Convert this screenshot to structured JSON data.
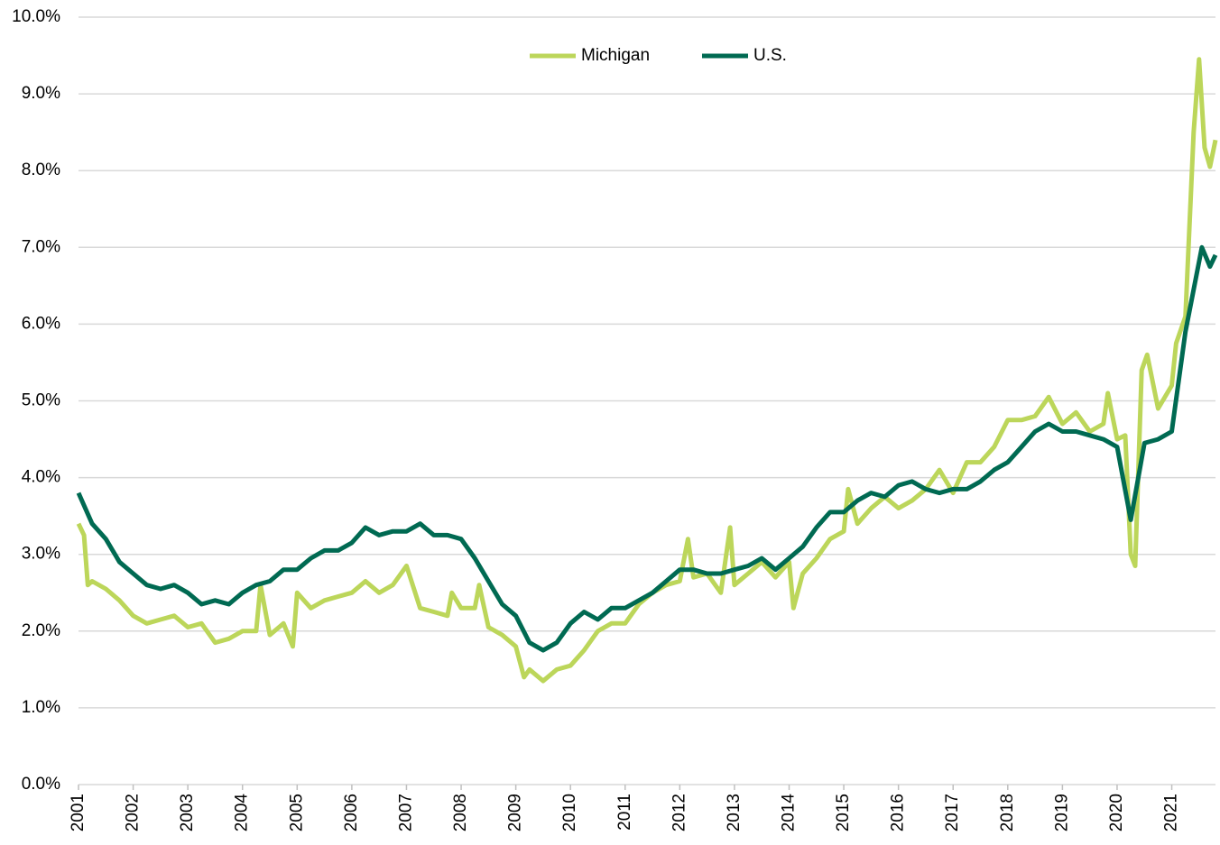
{
  "chart_data": {
    "type": "line",
    "xlim": [
      2001,
      2021.8
    ],
    "xticks": [
      2001,
      2002,
      2003,
      2004,
      2005,
      2006,
      2007,
      2008,
      2009,
      2010,
      2011,
      2012,
      2013,
      2014,
      2015,
      2016,
      2017,
      2018,
      2019,
      2020,
      2021
    ],
    "ylim": [
      0,
      10
    ],
    "yticks": [
      {
        "value": 0,
        "label": "0.0%"
      },
      {
        "value": 1,
        "label": "1.0%"
      },
      {
        "value": 2,
        "label": "2.0%"
      },
      {
        "value": 3,
        "label": "3.0%"
      },
      {
        "value": 4,
        "label": "4.0%"
      },
      {
        "value": 5,
        "label": "5.0%"
      },
      {
        "value": 6,
        "label": "6.0%"
      },
      {
        "value": 7,
        "label": "7.0%"
      },
      {
        "value": 8,
        "label": "8.0%"
      },
      {
        "value": 9,
        "label": "9.0%"
      },
      {
        "value": 10,
        "label": "10.0%"
      }
    ],
    "grid": true,
    "legend": "top",
    "series": [
      {
        "name": "Michigan",
        "color": "#bcd65a",
        "x": [
          2001.0,
          2001.1,
          2001.17,
          2001.25,
          2001.5,
          2001.75,
          2002.0,
          2002.25,
          2002.5,
          2002.75,
          2003.0,
          2003.25,
          2003.5,
          2003.75,
          2004.0,
          2004.25,
          2004.33,
          2004.5,
          2004.75,
          2004.92,
          2005.0,
          2005.25,
          2005.5,
          2005.75,
          2006.0,
          2006.25,
          2006.5,
          2006.75,
          2007.0,
          2007.25,
          2007.5,
          2007.75,
          2007.83,
          2008.0,
          2008.25,
          2008.33,
          2008.5,
          2008.75,
          2009.0,
          2009.15,
          2009.25,
          2009.5,
          2009.75,
          2010.0,
          2010.25,
          2010.5,
          2010.75,
          2011.0,
          2011.25,
          2011.5,
          2011.75,
          2012.0,
          2012.15,
          2012.25,
          2012.5,
          2012.75,
          2012.92,
          2013.0,
          2013.25,
          2013.5,
          2013.75,
          2014.0,
          2014.08,
          2014.25,
          2014.5,
          2014.75,
          2015.0,
          2015.08,
          2015.25,
          2015.5,
          2015.75,
          2016.0,
          2016.25,
          2016.5,
          2016.75,
          2017.0,
          2017.25,
          2017.5,
          2017.75,
          2018.0,
          2018.25,
          2018.5,
          2018.75,
          2019.0,
          2019.25,
          2019.5,
          2019.75,
          2019.83,
          2020.0,
          2020.15,
          2020.25,
          2020.33,
          2020.45,
          2020.55,
          2020.75,
          2021.0,
          2021.08,
          2021.25,
          2021.4,
          2021.5,
          2021.6,
          2021.7,
          2021.8
        ],
        "values": [
          3.4,
          3.25,
          2.6,
          2.65,
          2.55,
          2.4,
          2.2,
          2.1,
          2.15,
          2.2,
          2.05,
          2.1,
          1.85,
          1.9,
          2.0,
          2.0,
          2.6,
          1.95,
          2.1,
          1.8,
          2.5,
          2.3,
          2.4,
          2.45,
          2.5,
          2.65,
          2.5,
          2.6,
          2.85,
          2.3,
          2.25,
          2.2,
          2.5,
          2.3,
          2.3,
          2.6,
          2.05,
          1.95,
          1.8,
          1.4,
          1.5,
          1.35,
          1.5,
          1.55,
          1.75,
          2.0,
          2.1,
          2.1,
          2.35,
          2.5,
          2.6,
          2.65,
          3.2,
          2.7,
          2.75,
          2.5,
          3.35,
          2.6,
          2.75,
          2.9,
          2.7,
          2.9,
          2.3,
          2.75,
          2.95,
          3.2,
          3.3,
          3.85,
          3.4,
          3.6,
          3.75,
          3.6,
          3.7,
          3.85,
          4.1,
          3.8,
          4.2,
          4.2,
          4.4,
          4.75,
          4.75,
          4.8,
          5.05,
          4.7,
          4.85,
          4.6,
          4.7,
          5.1,
          4.5,
          4.55,
          3.0,
          2.85,
          5.4,
          5.6,
          4.9,
          5.2,
          5.75,
          6.1,
          8.5,
          9.45,
          8.3,
          8.05,
          8.4
        ]
      },
      {
        "name": "U.S.",
        "color": "#006a52",
        "x": [
          2001.0,
          2001.25,
          2001.5,
          2001.75,
          2002.0,
          2002.25,
          2002.5,
          2002.75,
          2003.0,
          2003.25,
          2003.5,
          2003.75,
          2004.0,
          2004.25,
          2004.5,
          2004.75,
          2005.0,
          2005.25,
          2005.5,
          2005.75,
          2006.0,
          2006.25,
          2006.5,
          2006.75,
          2007.0,
          2007.25,
          2007.5,
          2007.75,
          2008.0,
          2008.25,
          2008.5,
          2008.75,
          2009.0,
          2009.25,
          2009.5,
          2009.75,
          2010.0,
          2010.25,
          2010.5,
          2010.75,
          2011.0,
          2011.25,
          2011.5,
          2011.75,
          2012.0,
          2012.25,
          2012.5,
          2012.75,
          2013.0,
          2013.25,
          2013.5,
          2013.75,
          2014.0,
          2014.25,
          2014.5,
          2014.75,
          2015.0,
          2015.25,
          2015.5,
          2015.75,
          2016.0,
          2016.25,
          2016.5,
          2016.75,
          2017.0,
          2017.25,
          2017.5,
          2017.75,
          2018.0,
          2018.25,
          2018.5,
          2018.75,
          2019.0,
          2019.25,
          2019.5,
          2019.75,
          2020.0,
          2020.25,
          2020.5,
          2020.75,
          2021.0,
          2021.25,
          2021.55,
          2021.7,
          2021.8
        ],
        "values": [
          3.8,
          3.4,
          3.2,
          2.9,
          2.75,
          2.6,
          2.55,
          2.6,
          2.5,
          2.35,
          2.4,
          2.35,
          2.5,
          2.6,
          2.65,
          2.8,
          2.8,
          2.95,
          3.05,
          3.05,
          3.15,
          3.35,
          3.25,
          3.3,
          3.3,
          3.4,
          3.25,
          3.25,
          3.2,
          2.95,
          2.65,
          2.35,
          2.2,
          1.85,
          1.75,
          1.85,
          2.1,
          2.25,
          2.15,
          2.3,
          2.3,
          2.4,
          2.5,
          2.65,
          2.8,
          2.8,
          2.75,
          2.75,
          2.8,
          2.85,
          2.95,
          2.8,
          2.95,
          3.1,
          3.35,
          3.55,
          3.55,
          3.7,
          3.8,
          3.75,
          3.9,
          3.95,
          3.85,
          3.8,
          3.85,
          3.85,
          3.95,
          4.1,
          4.2,
          4.4,
          4.6,
          4.7,
          4.6,
          4.6,
          4.55,
          4.5,
          4.4,
          3.45,
          4.45,
          4.5,
          4.6,
          5.9,
          7.0,
          6.75,
          6.9
        ]
      }
    ]
  }
}
